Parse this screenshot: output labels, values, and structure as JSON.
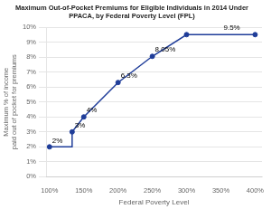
{
  "chart_data": {
    "type": "line",
    "title": "Maximum Out-of-Pocket Premiums for Eligible Individuals in 2014 Under\nPPACA, by Federal Poverty Level (FPL)",
    "xlabel": "Federal Poverty Level",
    "ylabel": "Maximum % of income\npaid out of pocket for premiums",
    "series": [
      {
        "type": "line",
        "color": "#1F3D99",
        "marker": "none",
        "x": [
          100,
          133,
          133,
          150,
          200,
          250,
          300,
          400
        ],
        "values": [
          2.0,
          2.0,
          3.0,
          4.0,
          6.3,
          8.05,
          9.5,
          9.5
        ]
      },
      {
        "type": "scatter",
        "color": "#1F3D99",
        "marker": "circle",
        "x": [
          100,
          133,
          150,
          200,
          250,
          300,
          400
        ],
        "values": [
          2.0,
          3.0,
          4.0,
          6.3,
          8.05,
          9.5,
          9.5
        ]
      }
    ],
    "annotations": [
      {
        "x": 100,
        "y": 2.0,
        "label": "2%"
      },
      {
        "x": 133,
        "y": 3.0,
        "label": "3%"
      },
      {
        "x": 150,
        "y": 4.0,
        "label": "4%"
      },
      {
        "x": 200,
        "y": 6.3,
        "label": "6.3%"
      },
      {
        "x": 250,
        "y": 8.05,
        "label": "8.05%"
      },
      {
        "x": 350,
        "y": 9.5,
        "label": "9.5%"
      }
    ],
    "xlim": [
      95,
      410
    ],
    "ylim": [
      0,
      10
    ],
    "xticks": [
      {
        "value": 100,
        "label": "100%"
      },
      {
        "value": 150,
        "label": "150%"
      },
      {
        "value": 200,
        "label": "200%"
      },
      {
        "value": 250,
        "label": "250%"
      },
      {
        "value": 300,
        "label": "300%"
      },
      {
        "value": 350,
        "label": "350%"
      },
      {
        "value": 400,
        "label": "400%"
      }
    ],
    "yticks": [
      {
        "value": 0,
        "label": "0%"
      },
      {
        "value": 1,
        "label": "1%"
      },
      {
        "value": 2,
        "label": "2%"
      },
      {
        "value": 3,
        "label": "3%"
      },
      {
        "value": 4,
        "label": "4%"
      },
      {
        "value": 5,
        "label": "5%"
      },
      {
        "value": 6,
        "label": "6%"
      },
      {
        "value": 7,
        "label": "7%"
      },
      {
        "value": 8,
        "label": "8%"
      },
      {
        "value": 9,
        "label": "9%"
      },
      {
        "value": 10,
        "label": "10%"
      }
    ],
    "grid": "y"
  }
}
